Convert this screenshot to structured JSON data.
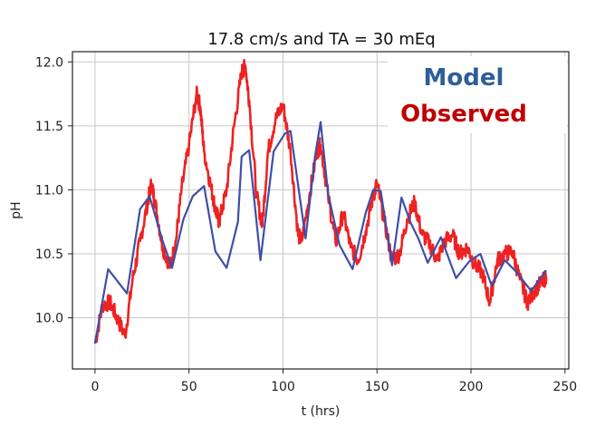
{
  "chart_data": {
    "type": "line",
    "title": "17.8 cm/s and TA = 30 mEq",
    "xlabel": "t (hrs)",
    "ylabel": "pH",
    "xlim": [
      -12,
      252
    ],
    "ylim": [
      9.6,
      12.08
    ],
    "xticks": [
      0,
      50,
      100,
      150,
      200,
      250
    ],
    "yticks": [
      10.0,
      10.5,
      11.0,
      11.5,
      12.0
    ],
    "xtick_labels": [
      "0",
      "50",
      "100",
      "150",
      "200",
      "250"
    ],
    "ytick_labels": [
      "10.0",
      "10.5",
      "11.0",
      "11.5",
      "12.0"
    ],
    "grid": true,
    "legend_position": "top-right",
    "series": [
      {
        "name": "Model",
        "color": "#3f4ea8",
        "x": [
          0,
          7,
          17,
          24,
          29,
          36,
          41,
          47,
          52,
          58,
          64,
          70,
          76,
          78,
          82,
          88,
          95,
          101,
          104,
          112,
          117,
          120,
          124,
          130,
          137,
          144,
          148,
          152,
          158,
          163,
          168,
          172,
          177,
          184,
          192,
          199,
          205,
          211,
          218,
          224,
          232,
          240
        ],
        "values": [
          9.8,
          10.38,
          10.19,
          10.85,
          10.95,
          10.6,
          10.39,
          10.77,
          10.95,
          11.03,
          10.52,
          10.39,
          10.75,
          11.26,
          11.31,
          10.45,
          11.3,
          11.44,
          11.46,
          10.62,
          11.26,
          11.53,
          10.97,
          10.57,
          10.38,
          10.82,
          11.0,
          10.99,
          10.41,
          10.94,
          10.74,
          10.62,
          10.43,
          10.63,
          10.31,
          10.44,
          10.5,
          10.25,
          10.45,
          10.36,
          10.21,
          10.37
        ]
      },
      {
        "name": "Observed",
        "color": "#ee2222",
        "x": [
          0,
          4,
          8,
          12,
          16,
          20,
          24,
          28,
          30,
          32,
          36,
          40,
          43,
          46,
          50,
          54,
          56,
          58,
          62,
          64,
          66,
          70,
          74,
          78,
          80,
          82,
          86,
          89,
          92,
          96,
          100,
          104,
          108,
          110,
          114,
          118,
          120,
          124,
          128,
          132,
          136,
          140,
          144,
          148,
          150,
          154,
          158,
          162,
          166,
          170,
          174,
          178,
          182,
          186,
          190,
          194,
          198,
          202,
          206,
          210,
          214,
          218,
          222,
          226,
          230,
          234,
          238,
          240
        ],
        "values": [
          9.8,
          10.1,
          10.12,
          9.99,
          9.86,
          10.3,
          10.6,
          10.9,
          11.05,
          10.9,
          10.55,
          10.4,
          10.6,
          11.0,
          11.35,
          11.75,
          11.65,
          11.3,
          11.0,
          10.85,
          10.75,
          11.0,
          11.5,
          11.92,
          11.97,
          11.7,
          10.95,
          10.72,
          11.3,
          11.55,
          11.67,
          11.3,
          10.65,
          10.6,
          10.95,
          11.3,
          11.35,
          10.95,
          10.58,
          10.82,
          10.55,
          10.45,
          10.68,
          10.95,
          11.05,
          10.75,
          10.45,
          10.5,
          10.77,
          10.9,
          10.65,
          10.58,
          10.45,
          10.6,
          10.65,
          10.5,
          10.55,
          10.42,
          10.35,
          10.12,
          10.45,
          10.5,
          10.52,
          10.3,
          10.12,
          10.22,
          10.28,
          10.32
        ]
      }
    ]
  }
}
